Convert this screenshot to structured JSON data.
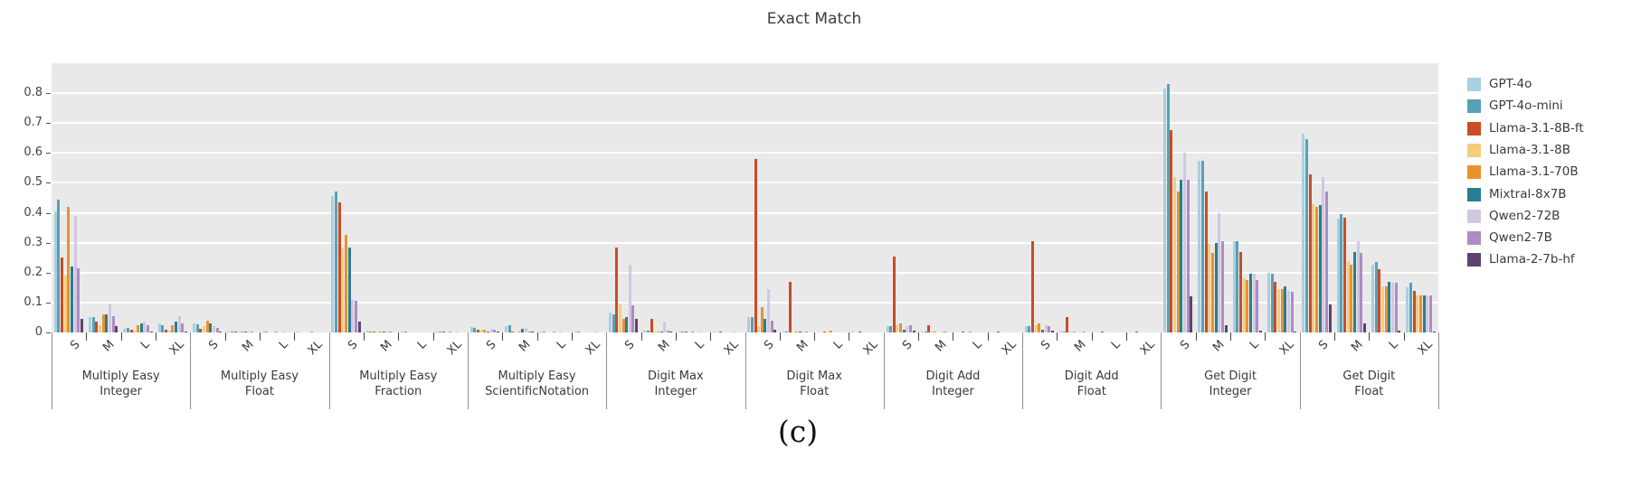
{
  "chart_data": {
    "type": "bar",
    "title": "Exact Match",
    "caption": "(c)",
    "xlabel": "",
    "ylabel": "",
    "y_axis": {
      "ticks": [
        0,
        0.1,
        0.2,
        0.3,
        0.4,
        0.5,
        0.6,
        0.7,
        0.8
      ],
      "max": 0.9
    },
    "grid": "on",
    "legend_position": "right-outside",
    "plot_bg_color": "#e9e9ea",
    "grid_color": "#ffffff",
    "sizes": [
      "S",
      "M",
      "L",
      "XL"
    ],
    "series": [
      {
        "name": "GPT-4o",
        "color": "#a9cfe0"
      },
      {
        "name": "GPT-4o-mini",
        "color": "#56a1b5"
      },
      {
        "name": "Llama-3.1-8B-ft",
        "color": "#c94c26"
      },
      {
        "name": "Llama-3.1-8B",
        "color": "#f3cd7d"
      },
      {
        "name": "Llama-3.1-70B",
        "color": "#e8922f"
      },
      {
        "name": "Mixtral-8x7B",
        "color": "#2a7d8e"
      },
      {
        "name": "Qwen2-72B",
        "color": "#d2c7e0"
      },
      {
        "name": "Qwen2-7B",
        "color": "#ae8bc3"
      },
      {
        "name": "Llama-2-7b-hf",
        "color": "#5d4370"
      }
    ],
    "groups": [
      {
        "label_line1": "Multiply Easy",
        "label_line2": "Integer",
        "values": {
          "S": [
            0.405,
            0.445,
            0.25,
            0.19,
            0.42,
            0.22,
            0.39,
            0.215,
            0.045
          ],
          "M": [
            0.05,
            0.05,
            0.035,
            0.025,
            0.06,
            0.06,
            0.095,
            0.055,
            0.02
          ],
          "L": [
            0.012,
            0.015,
            0.01,
            0.006,
            0.025,
            0.03,
            0.035,
            0.025,
            0.004
          ],
          "XL": [
            0.03,
            0.025,
            0.01,
            0.006,
            0.025,
            0.035,
            0.055,
            0.03,
            0.003
          ]
        }
      },
      {
        "label_line1": "Multiply Easy",
        "label_line2": "Float",
        "values": {
          "S": [
            0.03,
            0.027,
            0.012,
            0.02,
            0.04,
            0.03,
            0.02,
            0.015,
            0.004
          ],
          "M": [
            0.004,
            0.003,
            0.002,
            0.002,
            0.003,
            0.002,
            0.002,
            0.002,
            0
          ],
          "L": [
            0.002,
            0.002,
            0,
            0,
            0.002,
            0,
            0.002,
            0,
            0
          ],
          "XL": [
            0.002,
            0,
            0,
            0,
            0.002,
            0,
            0,
            0,
            0
          ]
        }
      },
      {
        "label_line1": "Multiply Easy",
        "label_line2": "Fraction",
        "values": {
          "S": [
            0.455,
            0.47,
            0.435,
            0.28,
            0.325,
            0.285,
            0.11,
            0.105,
            0.035
          ],
          "M": [
            0.005,
            0.004,
            0.002,
            0.002,
            0.003,
            0.002,
            0.002,
            0.002,
            0
          ],
          "L": [
            0.002,
            0.002,
            0,
            0,
            0,
            0,
            0,
            0,
            0
          ],
          "XL": [
            0.004,
            0.002,
            0.002,
            0,
            0.002,
            0,
            0.002,
            0,
            0
          ]
        }
      },
      {
        "label_line1": "Multiply Easy",
        "label_line2": "ScientificNotation",
        "values": {
          "S": [
            0.018,
            0.014,
            0.01,
            0.008,
            0.01,
            0.004,
            0.012,
            0.008,
            0.002
          ],
          "M": [
            0.02,
            0.024,
            0.004,
            0.002,
            0.003,
            0.012,
            0.014,
            0.004,
            0.002
          ],
          "L": [
            0.003,
            0.002,
            0,
            0,
            0.002,
            0,
            0.002,
            0,
            0
          ],
          "XL": [
            0.002,
            0.002,
            0,
            0,
            0,
            0,
            0.002,
            0,
            0
          ]
        }
      },
      {
        "label_line1": "Digit Max",
        "label_line2": "Integer",
        "values": {
          "S": [
            0.065,
            0.06,
            0.285,
            0.095,
            0.045,
            0.05,
            0.225,
            0.09,
            0.045
          ],
          "M": [
            0.006,
            0.005,
            0.045,
            0.004,
            0.004,
            0.003,
            0.035,
            0.006,
            0.002
          ],
          "L": [
            0.002,
            0.002,
            0.003,
            0,
            0.002,
            0,
            0.002,
            0,
            0
          ],
          "XL": [
            0.002,
            0,
            0.002,
            0,
            0,
            0,
            0.002,
            0,
            0
          ]
        }
      },
      {
        "label_line1": "Digit Max",
        "label_line2": "Float",
        "values": {
          "S": [
            0.05,
            0.05,
            0.58,
            0.02,
            0.085,
            0.045,
            0.145,
            0.04,
            0.01
          ],
          "M": [
            0.004,
            0.003,
            0.17,
            0.002,
            0.003,
            0.002,
            0.004,
            0.002,
            0
          ],
          "L": [
            0,
            0,
            0.003,
            0.002,
            0.005,
            0,
            0,
            0,
            0
          ],
          "XL": [
            0.002,
            0,
            0.002,
            0,
            0,
            0,
            0,
            0,
            0
          ]
        }
      },
      {
        "label_line1": "Digit Add",
        "label_line2": "Integer",
        "values": {
          "S": [
            0.022,
            0.02,
            0.255,
            0.025,
            0.03,
            0.01,
            0.02,
            0.025,
            0.005
          ],
          "M": [
            0.002,
            0.002,
            0.025,
            0.002,
            0.002,
            0,
            0.002,
            0.002,
            0
          ],
          "L": [
            0,
            0,
            0.003,
            0,
            0.002,
            0,
            0,
            0,
            0
          ],
          "XL": [
            0,
            0,
            0.002,
            0,
            0,
            0,
            0,
            0,
            0
          ]
        }
      },
      {
        "label_line1": "Digit Add",
        "label_line2": "Float",
        "values": {
          "S": [
            0.02,
            0.02,
            0.305,
            0.025,
            0.03,
            0.01,
            0.025,
            0.02,
            0.005
          ],
          "M": [
            0.002,
            0.002,
            0.05,
            0.002,
            0.002,
            0,
            0.002,
            0.002,
            0
          ],
          "L": [
            0,
            0,
            0.002,
            0,
            0,
            0,
            0,
            0,
            0
          ],
          "XL": [
            0,
            0,
            0.002,
            0,
            0,
            0,
            0,
            0,
            0
          ]
        }
      },
      {
        "label_line1": "Get Digit",
        "label_line2": "Integer",
        "values": {
          "S": [
            0.815,
            0.83,
            0.675,
            0.52,
            0.47,
            0.51,
            0.6,
            0.51,
            0.12
          ],
          "M": [
            0.575,
            0.575,
            0.47,
            0.295,
            0.265,
            0.3,
            0.4,
            0.305,
            0.025
          ],
          "L": [
            0.305,
            0.305,
            0.27,
            0.18,
            0.175,
            0.195,
            0.195,
            0.175,
            0.006
          ],
          "XL": [
            0.2,
            0.195,
            0.17,
            0.145,
            0.145,
            0.155,
            0.14,
            0.135,
            0.004
          ]
        }
      },
      {
        "label_line1": "Get Digit",
        "label_line2": "Float",
        "values": {
          "S": [
            0.665,
            0.645,
            0.53,
            0.43,
            0.42,
            0.425,
            0.52,
            0.47,
            0.095
          ],
          "M": [
            0.38,
            0.395,
            0.385,
            0.24,
            0.225,
            0.27,
            0.305,
            0.265,
            0.03
          ],
          "L": [
            0.225,
            0.235,
            0.21,
            0.155,
            0.155,
            0.17,
            0.165,
            0.165,
            0.006
          ],
          "XL": [
            0.15,
            0.165,
            0.14,
            0.125,
            0.125,
            0.125,
            0.125,
            0.125,
            0.004
          ]
        }
      }
    ]
  }
}
